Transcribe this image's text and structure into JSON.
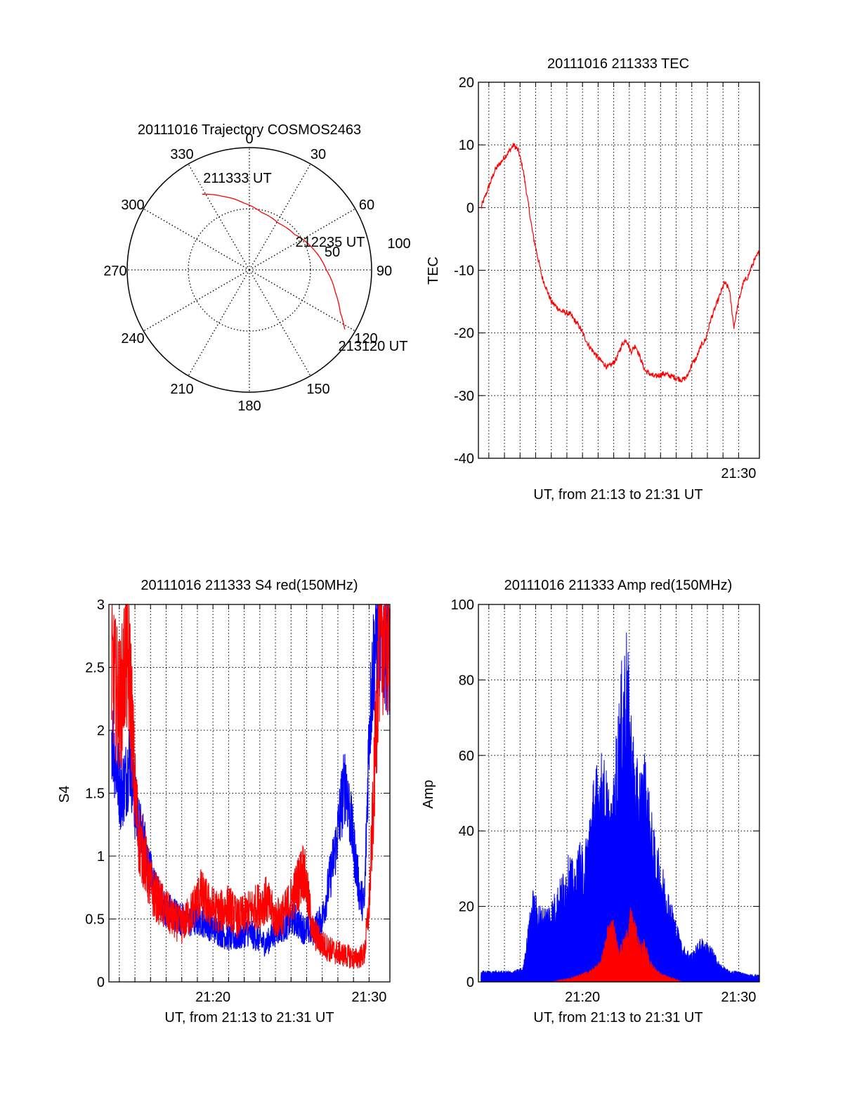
{
  "chart_data": [
    {
      "id": "trajectory",
      "type": "polar",
      "title": "20111016 Trajectory COSMOS2463",
      "azimuth_labels": [
        "0",
        "30",
        "60",
        "90",
        "120",
        "150",
        "180",
        "210",
        "240",
        "270",
        "300",
        "330"
      ],
      "radius_labels": [
        "50",
        "100"
      ],
      "rlim": [
        0,
        100
      ],
      "grid": true,
      "series": [
        {
          "color": "#ff0000",
          "points": [
            [
              328,
              73
            ],
            [
              340,
              64
            ],
            [
              355,
              55
            ],
            [
              12,
              48
            ],
            [
              32,
              45
            ],
            [
              52,
              47
            ],
            [
              72,
              55
            ],
            [
              90,
              63
            ],
            [
              105,
              73
            ],
            [
              115,
              82
            ],
            [
              122,
              92
            ]
          ]
        }
      ],
      "annotations": [
        {
          "text": "211333 UT",
          "az": 328,
          "el": 73
        },
        {
          "text": "212235 UT",
          "az": 55,
          "el": 47
        },
        {
          "text": "213120 UT",
          "az": 122,
          "el": 92
        }
      ]
    },
    {
      "id": "tec",
      "type": "line",
      "title": "20111016 211333 TEC",
      "xlabel": "UT, from 21:13 to 21:31 UT",
      "ylabel": "TEC",
      "xlim": [
        21.2222,
        21.5222
      ],
      "ylim": [
        -40,
        20
      ],
      "yticks": [
        "20",
        "10",
        "0",
        "-10",
        "-20",
        "-30",
        "-40"
      ],
      "xtick_labels": [
        {
          "label": "21:30",
          "x": 21.5
        }
      ],
      "grid": true,
      "series": [
        {
          "color": "#ff0000",
          "x": [
            21.225,
            21.23,
            21.235,
            21.24,
            21.245,
            21.25,
            21.255,
            21.26,
            21.265,
            21.27,
            21.275,
            21.28,
            21.29,
            21.3,
            21.31,
            21.32,
            21.33,
            21.34,
            21.35,
            21.36,
            21.365,
            21.37,
            21.375,
            21.38,
            21.385,
            21.39,
            21.395,
            21.4,
            21.41,
            21.42,
            21.43,
            21.44,
            21.445,
            21.45,
            21.455,
            21.46,
            21.465,
            21.47,
            21.475,
            21.48,
            21.485,
            21.49,
            21.495,
            21.5,
            21.505,
            21.51,
            21.515,
            21.5222
          ],
          "y": [
            0,
            2,
            4,
            6,
            7,
            8,
            9,
            10,
            9,
            6,
            1,
            -4,
            -11,
            -15,
            -16.5,
            -17,
            -19,
            -22,
            -24,
            -25.5,
            -25,
            -24,
            -22,
            -21,
            -23,
            -22,
            -24,
            -26,
            -27,
            -26.5,
            -27,
            -27.5,
            -27,
            -25,
            -24,
            -22,
            -21,
            -18,
            -16,
            -14,
            -12,
            -13,
            -19,
            -15,
            -12,
            -11,
            -9,
            -7
          ]
        }
      ]
    },
    {
      "id": "s4",
      "type": "line",
      "title": "20111016 211333 S4 red(150MHz)",
      "xlabel": "UT, from 21:13 to 21:31 UT",
      "ylabel": "S4",
      "xlim": [
        21.2222,
        21.5222
      ],
      "ylim": [
        0,
        3
      ],
      "yticks": [
        "3",
        "2.5",
        "2",
        "1.5",
        "1",
        "0.5",
        "0"
      ],
      "xtick_labels": [
        {
          "label": "21:20",
          "x": 21.3333
        },
        {
          "label": "21:30",
          "x": 21.5
        }
      ],
      "grid": true,
      "series": [
        {
          "color": "#0000ff",
          "x": [
            21.225,
            21.23,
            21.235,
            21.24,
            21.245,
            21.25,
            21.255,
            21.26,
            21.265,
            21.27,
            21.28,
            21.29,
            21.3,
            21.31,
            21.32,
            21.33,
            21.34,
            21.35,
            21.36,
            21.37,
            21.38,
            21.39,
            21.4,
            21.41,
            21.42,
            21.43,
            21.44,
            21.45,
            21.455,
            21.46,
            21.465,
            21.47,
            21.475,
            21.48,
            21.485,
            21.49,
            21.495,
            21.5,
            21.505,
            21.51,
            21.515,
            21.5222
          ],
          "y": [
            2.0,
            1.7,
            1.5,
            1.6,
            1.8,
            1.4,
            1.2,
            1.1,
            0.9,
            0.75,
            0.6,
            0.55,
            0.5,
            0.48,
            0.5,
            0.45,
            0.4,
            0.35,
            0.35,
            0.4,
            0.35,
            0.3,
            0.4,
            0.45,
            0.5,
            0.42,
            0.4,
            0.5,
            0.7,
            0.9,
            1.1,
            1.4,
            1.6,
            1.3,
            1.0,
            0.7,
            0.6,
            2.0,
            2.6,
            2.8,
            2.7,
            2.6
          ]
        },
        {
          "color": "#ff0000",
          "x": [
            21.225,
            21.23,
            21.235,
            21.24,
            21.245,
            21.25,
            21.255,
            21.26,
            21.265,
            21.27,
            21.28,
            21.29,
            21.3,
            21.31,
            21.32,
            21.33,
            21.34,
            21.35,
            21.36,
            21.37,
            21.38,
            21.39,
            21.4,
            21.41,
            21.42,
            21.43,
            21.44,
            21.45,
            21.46,
            21.47,
            21.48,
            21.485,
            21.49,
            21.495,
            21.5,
            21.505,
            21.51,
            21.515,
            21.5222
          ],
          "y": [
            2.5,
            2.3,
            2.2,
            2.6,
            2.4,
            1.5,
            1.1,
            1.0,
            0.8,
            0.7,
            0.6,
            0.5,
            0.45,
            0.55,
            0.7,
            0.6,
            0.55,
            0.6,
            0.5,
            0.55,
            0.6,
            0.65,
            0.5,
            0.55,
            0.7,
            0.9,
            0.4,
            0.3,
            0.25,
            0.22,
            0.2,
            0.18,
            0.2,
            0.22,
            0.6,
            1.5,
            2.6,
            2.8,
            2.7
          ]
        }
      ]
    },
    {
      "id": "amp",
      "type": "area",
      "title": "20111016 211333 Amp red(150MHz)",
      "xlabel": "UT, from 21:13 to 21:31 UT",
      "ylabel": "Amp",
      "xlim": [
        21.2222,
        21.5222
      ],
      "ylim": [
        0,
        100
      ],
      "yticks": [
        "100",
        "80",
        "60",
        "40",
        "20",
        "0"
      ],
      "xtick_labels": [
        {
          "label": "21:20",
          "x": 21.3333
        },
        {
          "label": "21:30",
          "x": 21.5
        }
      ],
      "grid": true,
      "series": [
        {
          "color": "#0000ff",
          "x": [
            21.225,
            21.24,
            21.26,
            21.27,
            21.28,
            21.29,
            21.3,
            21.31,
            21.32,
            21.325,
            21.33,
            21.335,
            21.34,
            21.345,
            21.35,
            21.355,
            21.36,
            21.365,
            21.37,
            21.375,
            21.38,
            21.385,
            21.39,
            21.395,
            21.4,
            21.405,
            21.41,
            21.415,
            21.42,
            21.43,
            21.44,
            21.45,
            21.46,
            21.47,
            21.48,
            21.49,
            21.5,
            21.51,
            21.5222
          ],
          "y": [
            3,
            3,
            3,
            4,
            25,
            20,
            22,
            28,
            35,
            30,
            38,
            35,
            45,
            55,
            60,
            62,
            55,
            48,
            70,
            85,
            96,
            75,
            60,
            58,
            62,
            50,
            40,
            35,
            30,
            20,
            10,
            8,
            12,
            10,
            5,
            3,
            3,
            2,
            2
          ]
        },
        {
          "color": "#ff0000",
          "x": [
            21.225,
            21.3,
            21.32,
            21.33,
            21.34,
            21.35,
            21.355,
            21.36,
            21.365,
            21.37,
            21.375,
            21.38,
            21.385,
            21.39,
            21.395,
            21.4,
            21.405,
            21.41,
            21.42,
            21.44,
            21.5222
          ],
          "y": [
            0,
            0,
            1,
            2,
            3,
            5,
            8,
            15,
            18,
            12,
            10,
            14,
            20,
            16,
            10,
            12,
            6,
            4,
            2,
            0,
            0
          ]
        }
      ]
    }
  ]
}
